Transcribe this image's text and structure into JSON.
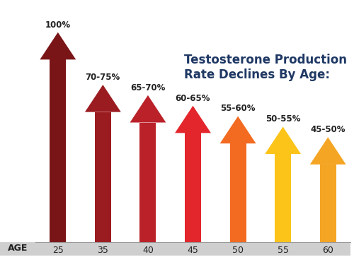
{
  "chart_data": {
    "type": "bar",
    "title": "Testosterone Production Rate Declines By Age:",
    "x_label": "AGE",
    "categories": [
      "25",
      "35",
      "40",
      "45",
      "50",
      "55",
      "60"
    ],
    "values": [
      100,
      75,
      70,
      65,
      60,
      55,
      50
    ],
    "value_labels": [
      "100%",
      "70-75%",
      "65-70%",
      "60-65%",
      "55-60%",
      "50-55%",
      "45-50%"
    ],
    "colors": [
      "#7a1517",
      "#9b1c20",
      "#bb2129",
      "#e3262c",
      "#f26b21",
      "#fcc419",
      "#f5a524"
    ],
    "ylim": [
      0,
      100
    ],
    "data_labels": true,
    "tick_labels": "x",
    "grid": false
  }
}
